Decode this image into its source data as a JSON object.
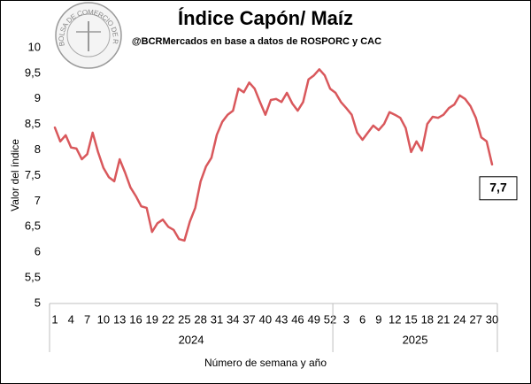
{
  "chart_data": {
    "type": "line",
    "title": "Índice Capón/ Maíz",
    "subtitle": "@BCRMercados  en base a datos de ROSPORC y CAC",
    "logo_text": "BOLSA DE COMERCIO DE ROSARIO",
    "y_label": "Valor del índice",
    "x_label": "Número de semana y año",
    "color": "#d9585c",
    "categories": [
      "1",
      null,
      null,
      "4",
      null,
      null,
      "7",
      null,
      null,
      "10",
      null,
      null,
      "13",
      null,
      null,
      "16",
      null,
      null,
      "19",
      null,
      null,
      "22",
      null,
      null,
      "25",
      null,
      null,
      "28",
      null,
      null,
      "31",
      null,
      null,
      "34",
      null,
      null,
      "37",
      null,
      null,
      "40",
      null,
      null,
      "43",
      null,
      null,
      "46",
      null,
      null,
      "49",
      null,
      null,
      "52",
      null,
      null,
      "3",
      null,
      null,
      "6",
      null,
      null,
      "9",
      null,
      null,
      "12",
      null,
      null,
      "15",
      null,
      null,
      "18",
      null,
      null,
      "21",
      null,
      null,
      "24",
      null,
      null,
      "27",
      null,
      null,
      "30"
    ],
    "x_groups": [
      {
        "label": "2024",
        "count": 52
      },
      {
        "label": "2025",
        "count": 30
      }
    ],
    "values": [
      8.44,
      8.17,
      8.29,
      8.05,
      8.03,
      7.82,
      7.92,
      8.34,
      7.96,
      7.65,
      7.47,
      7.39,
      7.82,
      7.56,
      7.27,
      7.1,
      6.9,
      6.87,
      6.4,
      6.57,
      6.64,
      6.5,
      6.44,
      6.26,
      6.23,
      6.6,
      6.87,
      7.39,
      7.68,
      7.85,
      8.3,
      8.55,
      8.69,
      8.77,
      9.2,
      9.13,
      9.32,
      9.2,
      8.94,
      8.69,
      8.98,
      9.0,
      8.94,
      9.12,
      8.91,
      8.77,
      8.94,
      9.38,
      9.46,
      9.58,
      9.46,
      9.2,
      9.12,
      8.94,
      8.82,
      8.69,
      8.34,
      8.2,
      8.34,
      8.48,
      8.39,
      8.51,
      8.74,
      8.69,
      8.63,
      8.43,
      7.96,
      8.17,
      7.99,
      8.51,
      8.65,
      8.63,
      8.69,
      8.82,
      8.89,
      9.07,
      9.0,
      8.86,
      8.63,
      8.25,
      8.17,
      7.72
    ],
    "value_labels": [
      null,
      null,
      null,
      null,
      null,
      null,
      null,
      null,
      null,
      null,
      null,
      null,
      null,
      null,
      null,
      null,
      null,
      null,
      null,
      null,
      null,
      null,
      null,
      null,
      null,
      null,
      null,
      null,
      null,
      null,
      null,
      null,
      null,
      null,
      null,
      null,
      null,
      null,
      null,
      null,
      null,
      null,
      null,
      null,
      null,
      null,
      null,
      null,
      null,
      null,
      null,
      null,
      null,
      null,
      null,
      null,
      null,
      null,
      null,
      null,
      null,
      null,
      null,
      null,
      null,
      null,
      null,
      null,
      null,
      null,
      null,
      null,
      null,
      null,
      null,
      null,
      null,
      null,
      null,
      null,
      null,
      "7,7"
    ],
    "ylim": [
      5,
      10
    ],
    "yticks": [
      5,
      {
        "value": 5.5,
        "label": "5,5"
      },
      6,
      {
        "value": 6.5,
        "label": "6,5"
      },
      7,
      {
        "value": 7.5,
        "label": "7,5"
      },
      8,
      {
        "value": 8.5,
        "label": "8,5"
      },
      9,
      {
        "value": 9.5,
        "label": "9,5"
      },
      10
    ],
    "grid": false
  }
}
